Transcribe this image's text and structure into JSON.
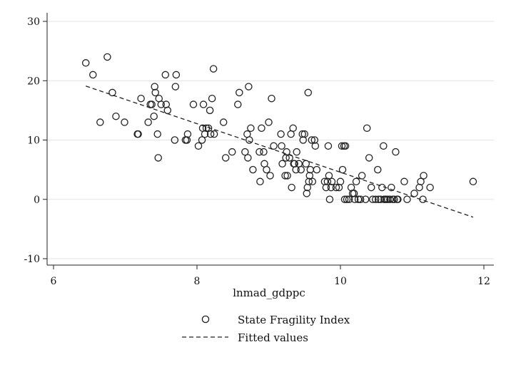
{
  "chart_data": {
    "type": "scatter",
    "xlabel": "lnmad_gdppc",
    "ylabel": "",
    "xlim": [
      6,
      12
    ],
    "ylim": [
      -10,
      30
    ],
    "x_ticks": [
      "6",
      "8",
      "10",
      "12"
    ],
    "y_ticks": [
      "-10",
      "0",
      "10",
      "20",
      "30"
    ],
    "grid": "horizontal",
    "legend_position": "bottom",
    "series": [
      {
        "name": "State Fragility Index",
        "kind": "markers",
        "points": [
          [
            6.45,
            23
          ],
          [
            6.55,
            21
          ],
          [
            6.65,
            13
          ],
          [
            6.75,
            24
          ],
          [
            6.82,
            18
          ],
          [
            6.87,
            14
          ],
          [
            6.99,
            13
          ],
          [
            7.17,
            11
          ],
          [
            7.18,
            11
          ],
          [
            7.22,
            17
          ],
          [
            7.32,
            13
          ],
          [
            7.35,
            16
          ],
          [
            7.37,
            16
          ],
          [
            7.4,
            14
          ],
          [
            7.41,
            19
          ],
          [
            7.42,
            18
          ],
          [
            7.45,
            11
          ],
          [
            7.46,
            7
          ],
          [
            7.47,
            17
          ],
          [
            7.5,
            16
          ],
          [
            7.56,
            21
          ],
          [
            7.57,
            16
          ],
          [
            7.59,
            15
          ],
          [
            7.69,
            10
          ],
          [
            7.7,
            19
          ],
          [
            7.71,
            21
          ],
          [
            7.84,
            10
          ],
          [
            7.86,
            10
          ],
          [
            7.87,
            11
          ],
          [
            7.95,
            16
          ],
          [
            8.02,
            9
          ],
          [
            8.07,
            10
          ],
          [
            8.08,
            12
          ],
          [
            8.09,
            16
          ],
          [
            8.11,
            11
          ],
          [
            8.13,
            12
          ],
          [
            8.16,
            12
          ],
          [
            8.18,
            15
          ],
          [
            8.19,
            11
          ],
          [
            8.21,
            17
          ],
          [
            8.23,
            22
          ],
          [
            8.24,
            11
          ],
          [
            8.37,
            13
          ],
          [
            8.4,
            7
          ],
          [
            8.49,
            8
          ],
          [
            8.57,
            16
          ],
          [
            8.59,
            18
          ],
          [
            8.67,
            8
          ],
          [
            8.7,
            11
          ],
          [
            8.71,
            7
          ],
          [
            8.72,
            19
          ],
          [
            8.73,
            10
          ],
          [
            8.75,
            12
          ],
          [
            8.78,
            5
          ],
          [
            8.87,
            8
          ],
          [
            8.88,
            3
          ],
          [
            8.9,
            12
          ],
          [
            8.93,
            8
          ],
          [
            8.94,
            6
          ],
          [
            8.97,
            5
          ],
          [
            9.0,
            13
          ],
          [
            9.02,
            4
          ],
          [
            9.04,
            17
          ],
          [
            9.07,
            9
          ],
          [
            9.17,
            11
          ],
          [
            9.18,
            9
          ],
          [
            9.19,
            6
          ],
          [
            9.23,
            4
          ],
          [
            9.24,
            7
          ],
          [
            9.25,
            8
          ],
          [
            9.26,
            4
          ],
          [
            9.29,
            7
          ],
          [
            9.31,
            11
          ],
          [
            9.32,
            2
          ],
          [
            9.34,
            12
          ],
          [
            9.35,
            6
          ],
          [
            9.36,
            6
          ],
          [
            9.38,
            5
          ],
          [
            9.39,
            8
          ],
          [
            9.42,
            6
          ],
          [
            9.45,
            5
          ],
          [
            9.47,
            11
          ],
          [
            9.48,
            10
          ],
          [
            9.5,
            11
          ],
          [
            9.52,
            6
          ],
          [
            9.53,
            1
          ],
          [
            9.54,
            2
          ],
          [
            9.55,
            18
          ],
          [
            9.56,
            3
          ],
          [
            9.57,
            4
          ],
          [
            9.58,
            5
          ],
          [
            9.6,
            10
          ],
          [
            9.61,
            3
          ],
          [
            9.64,
            10
          ],
          [
            9.65,
            9
          ],
          [
            9.67,
            5
          ],
          [
            9.78,
            3
          ],
          [
            9.8,
            2
          ],
          [
            9.82,
            3
          ],
          [
            9.83,
            9
          ],
          [
            9.84,
            4
          ],
          [
            9.85,
            0
          ],
          [
            9.87,
            2
          ],
          [
            9.88,
            3
          ],
          [
            9.94,
            2
          ],
          [
            9.98,
            2
          ],
          [
            10.0,
            3
          ],
          [
            10.02,
            9
          ],
          [
            10.03,
            5
          ],
          [
            10.05,
            9
          ],
          [
            10.06,
            0
          ],
          [
            10.07,
            9
          ],
          [
            10.09,
            0
          ],
          [
            10.12,
            0
          ],
          [
            10.15,
            2
          ],
          [
            10.17,
            1
          ],
          [
            10.19,
            1
          ],
          [
            10.2,
            0
          ],
          [
            10.22,
            3
          ],
          [
            10.25,
            0
          ],
          [
            10.28,
            0
          ],
          [
            10.3,
            4
          ],
          [
            10.35,
            0
          ],
          [
            10.37,
            12
          ],
          [
            10.4,
            7
          ],
          [
            10.43,
            2
          ],
          [
            10.45,
            0
          ],
          [
            10.49,
            0
          ],
          [
            10.52,
            5
          ],
          [
            10.53,
            0
          ],
          [
            10.56,
            0
          ],
          [
            10.58,
            2
          ],
          [
            10.6,
            9
          ],
          [
            10.61,
            0
          ],
          [
            10.62,
            0
          ],
          [
            10.64,
            0
          ],
          [
            10.66,
            0
          ],
          [
            10.69,
            0
          ],
          [
            10.71,
            2
          ],
          [
            10.73,
            0
          ],
          [
            10.75,
            0
          ],
          [
            10.77,
            8
          ],
          [
            10.79,
            0
          ],
          [
            10.8,
            0
          ],
          [
            10.89,
            3
          ],
          [
            10.93,
            0
          ],
          [
            11.03,
            1
          ],
          [
            11.1,
            2
          ],
          [
            11.12,
            3
          ],
          [
            11.15,
            0
          ],
          [
            11.16,
            4
          ],
          [
            11.25,
            2
          ],
          [
            11.85,
            3
          ]
        ]
      },
      {
        "name": "Fitted values",
        "kind": "dashed-line",
        "points": [
          [
            6.45,
            19.1
          ],
          [
            11.85,
            -3.0
          ]
        ]
      }
    ]
  }
}
